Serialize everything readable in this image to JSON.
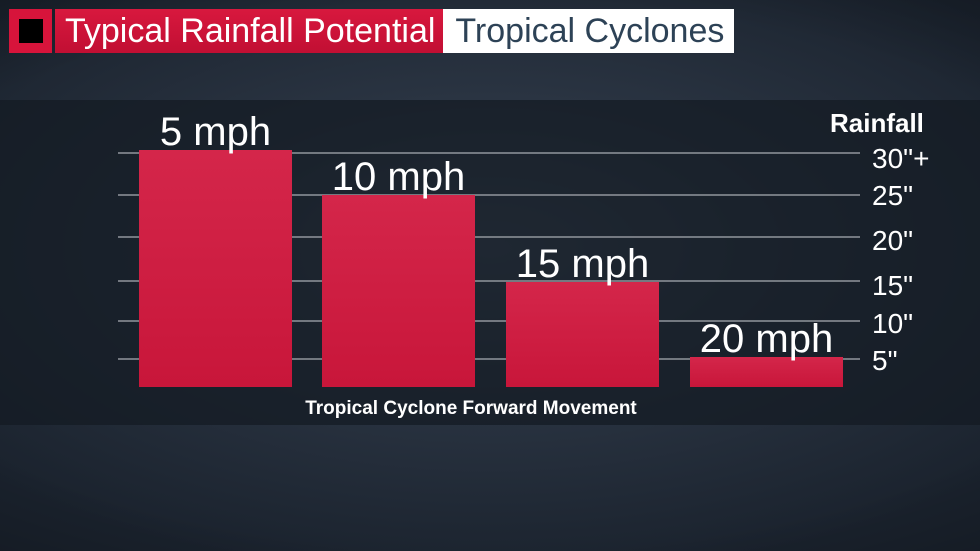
{
  "header": {
    "title": "Typical Rainfall Potential",
    "subtitle": "Tropical Cyclones"
  },
  "colors": {
    "bar": "#c8163a",
    "bar_light": "#d4264a",
    "header_red": "#d7143b",
    "header_text_dark": "#2d4256",
    "gridline": "#8a8f96"
  },
  "chart_data": {
    "type": "bar",
    "categories": [
      "5 mph",
      "10 mph",
      "15 mph",
      "20 mph"
    ],
    "values": [
      30,
      24.5,
      14,
      4
    ],
    "xlabel": "Tropical Cyclone Forward Movement",
    "ylabel": "Rainfall",
    "ylim": [
      0,
      30
    ],
    "yticks": [
      {
        "value": 30,
        "label": "30\"+"
      },
      {
        "value": 25,
        "label": "25\""
      },
      {
        "value": 20,
        "label": "20\""
      },
      {
        "value": 15,
        "label": "15\""
      },
      {
        "value": 10,
        "label": "10\""
      },
      {
        "value": 5,
        "label": "5\""
      }
    ],
    "grid": true,
    "axis_position": "right"
  }
}
